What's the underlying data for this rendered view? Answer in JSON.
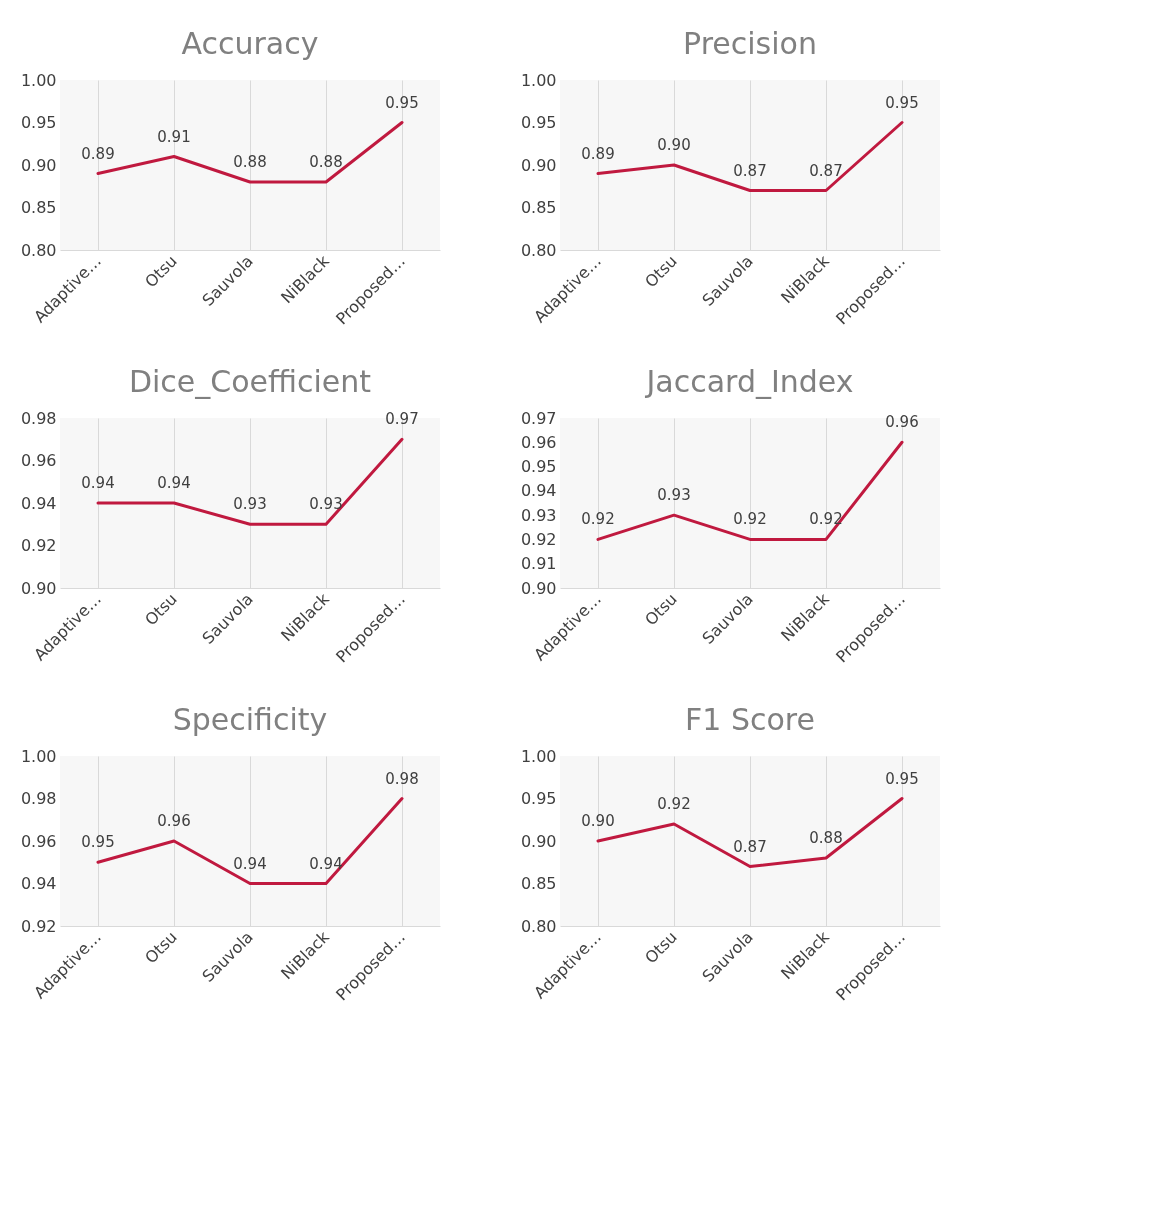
{
  "chart_data": [
    {
      "type": "line",
      "title": "Accuracy",
      "categories": [
        "Adaptive…",
        "Otsu",
        "Sauvola",
        "NiBlack",
        "Proposed…"
      ],
      "series": [
        {
          "color": "#c0193f",
          "values": [
            0.89,
            0.91,
            0.88,
            0.88,
            0.95
          ],
          "value_labels": [
            "0.89",
            "0.91",
            "0.88",
            "0.88",
            "0.95"
          ]
        }
      ],
      "ylim": [
        0.8,
        1.0
      ],
      "yticks": [
        {
          "value": 0.8,
          "label": "0.80"
        },
        {
          "value": 0.85,
          "label": "0.85"
        },
        {
          "value": 0.9,
          "label": "0.90"
        },
        {
          "value": 0.95,
          "label": "0.95"
        },
        {
          "value": 1.0,
          "label": "1.00"
        }
      ],
      "grid": "x",
      "legend": false,
      "marker": "none",
      "line_style": "solid"
    },
    {
      "type": "line",
      "title": "Precision",
      "categories": [
        "Adaptive…",
        "Otsu",
        "Sauvola",
        "NiBlack",
        "Proposed…"
      ],
      "series": [
        {
          "color": "#c0193f",
          "values": [
            0.89,
            0.9,
            0.87,
            0.87,
            0.95
          ],
          "value_labels": [
            "0.89",
            "0.90",
            "0.87",
            "0.87",
            "0.95"
          ]
        }
      ],
      "ylim": [
        0.8,
        1.0
      ],
      "yticks": [
        {
          "value": 0.8,
          "label": "0.80"
        },
        {
          "value": 0.85,
          "label": "0.85"
        },
        {
          "value": 0.9,
          "label": "0.90"
        },
        {
          "value": 0.95,
          "label": "0.95"
        },
        {
          "value": 1.0,
          "label": "1.00"
        }
      ],
      "grid": "x",
      "legend": false,
      "marker": "none",
      "line_style": "solid"
    },
    {
      "type": "line",
      "title": "Dice_Coefficient",
      "categories": [
        "Adaptive…",
        "Otsu",
        "Sauvola",
        "NiBlack",
        "Proposed…"
      ],
      "series": [
        {
          "color": "#c0193f",
          "values": [
            0.94,
            0.94,
            0.93,
            0.93,
            0.97
          ],
          "value_labels": [
            "0.94",
            "0.94",
            "0.93",
            "0.93",
            "0.97"
          ]
        }
      ],
      "ylim": [
        0.9,
        0.98
      ],
      "yticks": [
        {
          "value": 0.9,
          "label": "0.90"
        },
        {
          "value": 0.92,
          "label": "0.92"
        },
        {
          "value": 0.94,
          "label": "0.94"
        },
        {
          "value": 0.96,
          "label": "0.96"
        },
        {
          "value": 0.98,
          "label": "0.98"
        }
      ],
      "grid": "x",
      "legend": false,
      "marker": "none",
      "line_style": "solid"
    },
    {
      "type": "line",
      "title": "Jaccard_Index",
      "categories": [
        "Adaptive…",
        "Otsu",
        "Sauvola",
        "NiBlack",
        "Proposed…"
      ],
      "series": [
        {
          "color": "#c0193f",
          "values": [
            0.92,
            0.93,
            0.92,
            0.92,
            0.96
          ],
          "value_labels": [
            "0.92",
            "0.93",
            "0.92",
            "0.92",
            "0.96"
          ]
        }
      ],
      "ylim": [
        0.9,
        0.97
      ],
      "yticks": [
        {
          "value": 0.9,
          "label": "0.90"
        },
        0.91,
        0.92,
        0.93,
        0.94,
        0.95,
        0.96,
        0.97
      ],
      "grid": "x",
      "legend": false,
      "marker": "none",
      "line_style": "solid"
    },
    {
      "type": "line",
      "title": "Specificity",
      "categories": [
        "Adaptive…",
        "Otsu",
        "Sauvola",
        "NiBlack",
        "Proposed…"
      ],
      "series": [
        {
          "color": "#c0193f",
          "values": [
            0.95,
            0.96,
            0.94,
            0.94,
            0.98
          ],
          "value_labels": [
            "0.95",
            "0.96",
            "0.94",
            "0.94",
            "0.98"
          ]
        }
      ],
      "ylim": [
        0.92,
        1.0
      ],
      "yticks": [
        0.92,
        0.94,
        0.96,
        0.98,
        {
          "value": 1.0,
          "label": "1.00"
        }
      ],
      "grid": "x",
      "legend": false,
      "marker": "none",
      "line_style": "solid"
    },
    {
      "type": "line",
      "title": "F1 Score",
      "categories": [
        "Adaptive…",
        "Otsu",
        "Sauvola",
        "NiBlack",
        "Proposed…"
      ],
      "series": [
        {
          "color": "#c0193f",
          "values": [
            0.9,
            0.92,
            0.87,
            0.88,
            0.95
          ],
          "value_labels": [
            "0.90",
            "0.92",
            "0.87",
            "0.88",
            "0.95"
          ]
        }
      ],
      "ylim": [
        0.8,
        1.0
      ],
      "yticks": [
        {
          "value": 0.8,
          "label": "0.80"
        },
        {
          "value": 0.85,
          "label": "0.85"
        },
        {
          "value": 0.9,
          "label": "0.90"
        },
        {
          "value": 0.95,
          "label": "0.95"
        },
        {
          "value": 1.0,
          "label": "1.00"
        }
      ],
      "grid": "x",
      "legend": false,
      "marker": "none",
      "line_style": "solid"
    }
  ]
}
